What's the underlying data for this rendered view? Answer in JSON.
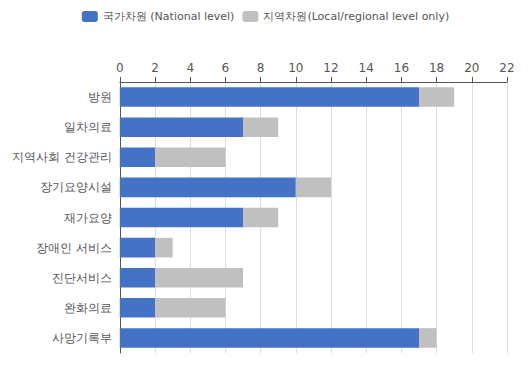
{
  "chart_data": {
    "type": "bar",
    "orientation": "horizontal",
    "stacked": true,
    "categories": [
      "방원",
      "일차의료",
      "지역사회 건강관리",
      "장기요양시설",
      "재가요양",
      "장애인 서비스",
      "진단서비스",
      "완화의료",
      "사망기록부"
    ],
    "series": [
      {
        "name": "국가차원 (National level)",
        "color": "#4472C4",
        "values": [
          17,
          7,
          2,
          10,
          7,
          2,
          2,
          2,
          17
        ]
      },
      {
        "name": "지역차원(Local/regional level only)",
        "color": "#C0C0C0",
        "values": [
          2,
          2,
          4,
          2,
          2,
          1,
          5,
          4,
          1
        ]
      }
    ],
    "xlim": [
      0,
      22
    ],
    "xticks": [
      0,
      2,
      4,
      6,
      8,
      10,
      12,
      14,
      16,
      18,
      20,
      22
    ],
    "grid": true,
    "legend": "top"
  }
}
